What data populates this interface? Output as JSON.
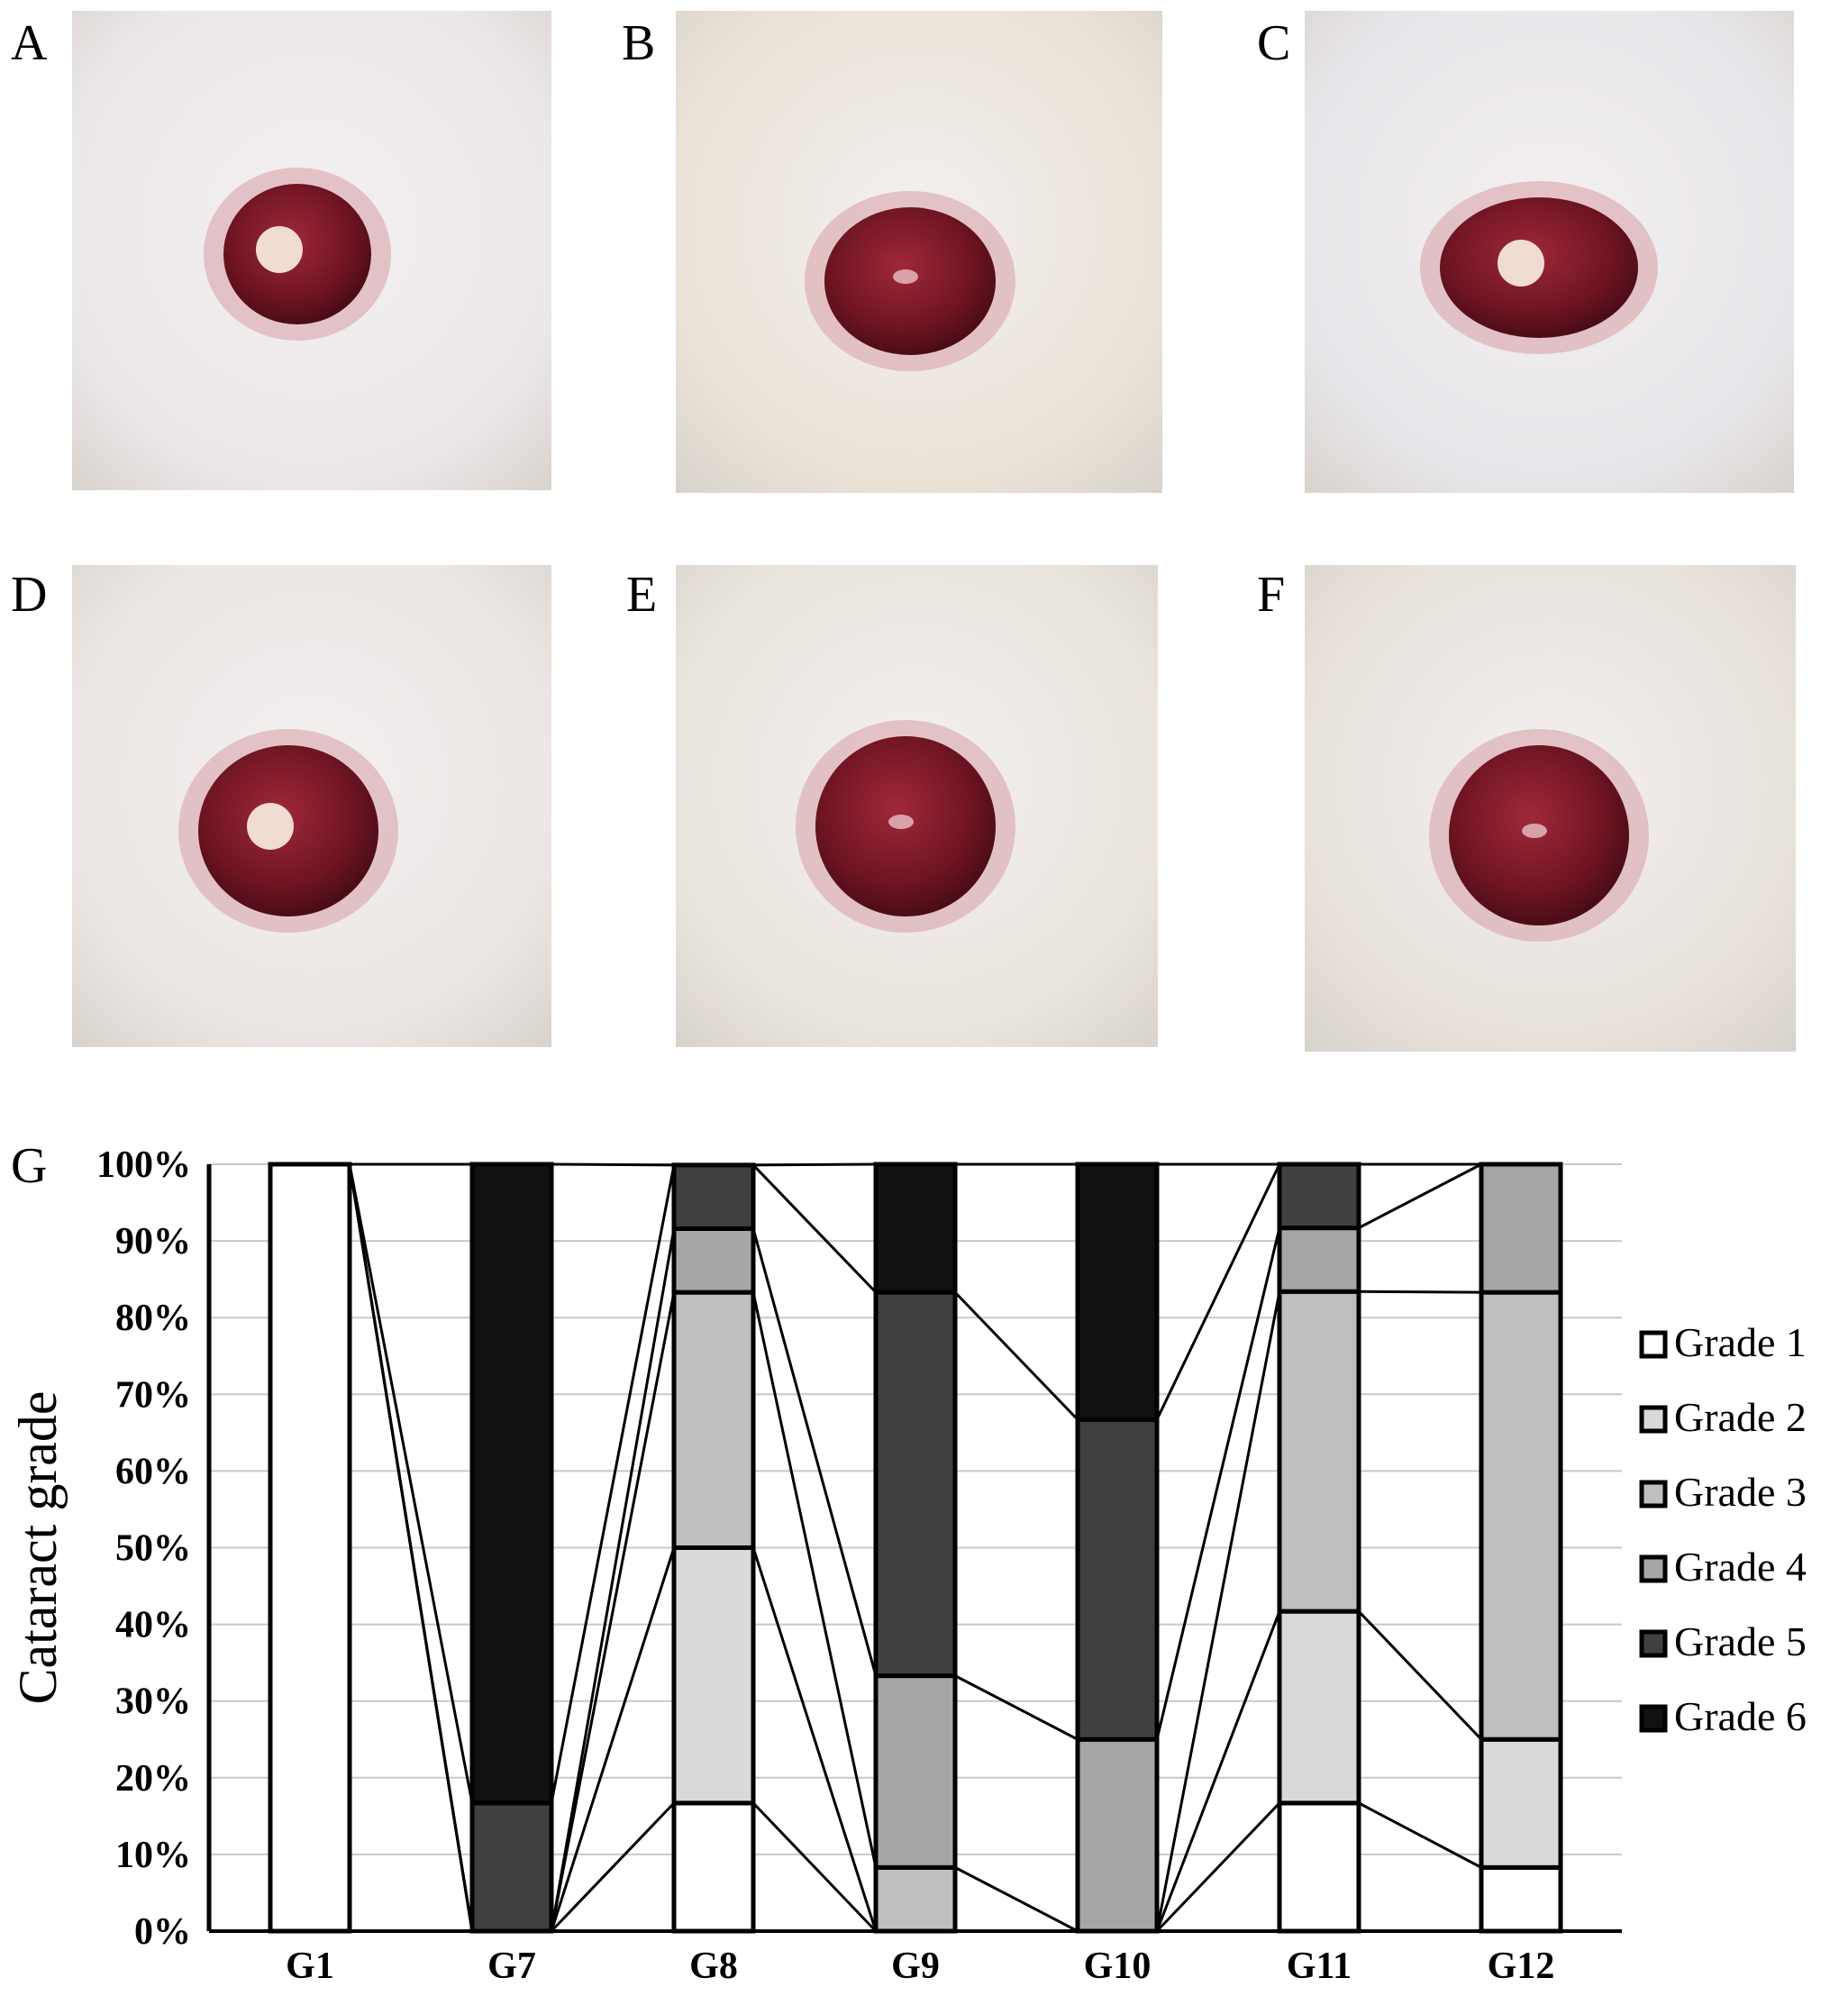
{
  "panels": [
    {
      "letter": "A",
      "description_icon": "rat-eye-photo"
    },
    {
      "letter": "B",
      "description_icon": "rat-eye-photo"
    },
    {
      "letter": "C",
      "description_icon": "rat-eye-photo"
    },
    {
      "letter": "D",
      "description_icon": "rat-eye-photo"
    },
    {
      "letter": "E",
      "description_icon": "rat-eye-photo"
    },
    {
      "letter": "F",
      "description_icon": "rat-eye-photo"
    }
  ],
  "chart_label": "G",
  "chart_data": {
    "type": "bar",
    "stacked": true,
    "normalized_percent": true,
    "categories": [
      "G1",
      "G7",
      "G8",
      "G9",
      "G10",
      "G11",
      "G12"
    ],
    "ylabel": "Cataract grade",
    "yticks": [
      "0%",
      "10%",
      "20%",
      "30%",
      "40%",
      "50%",
      "60%",
      "70%",
      "80%",
      "90%",
      "100%"
    ],
    "ylim": [
      0,
      100
    ],
    "grid": true,
    "legend_position": "right",
    "series": [
      {
        "name": "Grade 1",
        "color": "#ffffff",
        "values": [
          100,
          0,
          16.7,
          0,
          0,
          16.7,
          8.3
        ]
      },
      {
        "name": "Grade 2",
        "color": "#d9d9d9",
        "values": [
          0,
          0,
          33.3,
          0,
          0,
          25,
          16.7
        ]
      },
      {
        "name": "Grade 3",
        "color": "#bfbfbf",
        "values": [
          0,
          0,
          33.3,
          8.3,
          0,
          41.7,
          58.3
        ]
      },
      {
        "name": "Grade 4",
        "color": "#a6a6a6",
        "values": [
          0,
          0,
          8.3,
          25,
          25,
          8.3,
          16.7
        ]
      },
      {
        "name": "Grade 5",
        "color": "#404040",
        "values": [
          0,
          16.7,
          8.3,
          50,
          41.7,
          8.3,
          0
        ]
      },
      {
        "name": "Grade 6",
        "color": "#111111",
        "values": [
          0,
          83.3,
          0,
          16.7,
          33.3,
          0,
          0
        ]
      }
    ]
  }
}
